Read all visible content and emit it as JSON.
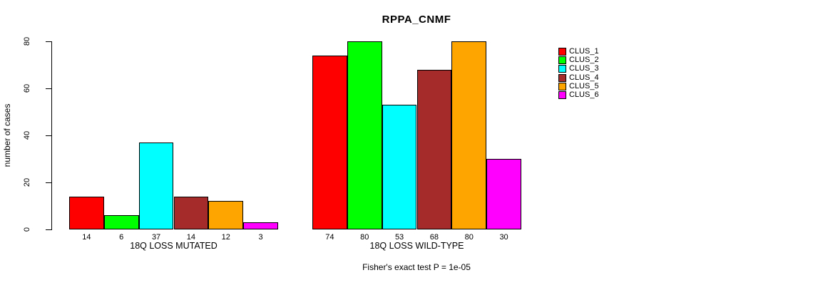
{
  "chart_data": {
    "type": "bar",
    "title": "RPPA_CNMF",
    "ylabel": "number of cases",
    "xlabel": "",
    "ylim": [
      0,
      80
    ],
    "yticks": [
      0,
      20,
      40,
      60,
      80
    ],
    "grid": false,
    "legend_position": "right",
    "groups": [
      {
        "label": "18Q LOSS MUTATED",
        "values": [
          14,
          6,
          37,
          14,
          12,
          3
        ]
      },
      {
        "label": "18Q LOSS WILD-TYPE",
        "values": [
          74,
          80,
          53,
          68,
          80,
          30
        ]
      }
    ],
    "series": [
      {
        "name": "CLUS_1",
        "color": "#FF0000",
        "values": [
          14,
          74
        ]
      },
      {
        "name": "CLUS_2",
        "color": "#00FF00",
        "values": [
          6,
          80
        ]
      },
      {
        "name": "CLUS_3",
        "color": "#00FFFF",
        "values": [
          37,
          53
        ]
      },
      {
        "name": "CLUS_4",
        "color": "#A52A2A",
        "values": [
          14,
          68
        ]
      },
      {
        "name": "CLUS_5",
        "color": "#FFA500",
        "values": [
          12,
          80
        ]
      },
      {
        "name": "CLUS_6",
        "color": "#FF00FF",
        "values": [
          3,
          30
        ]
      }
    ],
    "annotation": "Fisher's exact test P = 1e-05"
  }
}
